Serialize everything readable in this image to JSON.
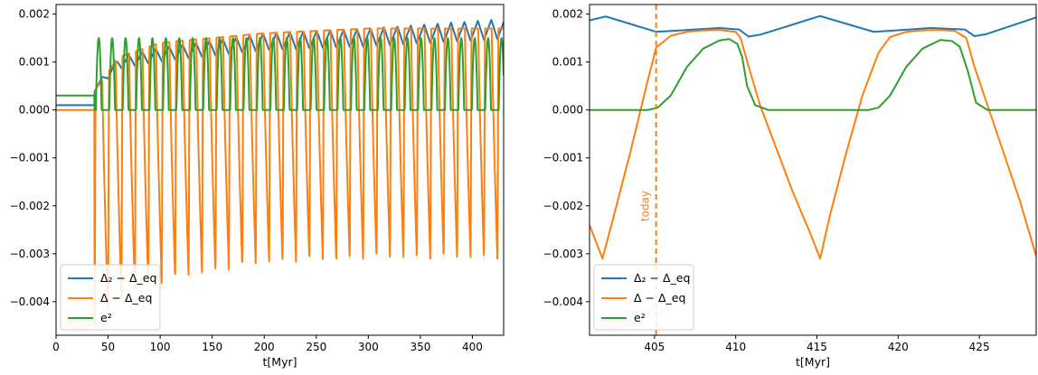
{
  "chart_data": [
    {
      "type": "line",
      "xlabel": "t[Myr]",
      "xlim": [
        0,
        430
      ],
      "ylim": [
        -0.0047,
        0.0022
      ],
      "xticks": [
        0,
        50,
        100,
        150,
        200,
        250,
        300,
        350,
        400
      ],
      "yticks": [
        -0.004,
        -0.003,
        -0.002,
        -0.001,
        0.0,
        0.001,
        0.002
      ],
      "xtick_labels": [
        "0",
        "50",
        "100",
        "150",
        "200",
        "250",
        "300",
        "350",
        "400"
      ],
      "ytick_labels": [
        "−0.004",
        "−0.003",
        "−0.002",
        "−0.001",
        "0.000",
        "0.001",
        "0.002"
      ],
      "legend_position": "lower-left",
      "legend": [
        "Δ₂ − Δ_eq",
        "Δ − Δ_eq",
        "e²"
      ],
      "generator": {
        "t_start": 37,
        "period": 12.9,
        "pre_values": {
          "blue": 0.0001,
          "orange": 0.0,
          "green": 0.0003
        },
        "blue_envelope": [
          [
            37,
            0.0005
          ],
          [
            60,
            0.0011
          ],
          [
            100,
            0.0013
          ],
          [
            200,
            0.0016
          ],
          [
            300,
            0.0017
          ],
          [
            430,
            0.0019
          ]
        ],
        "orange_max_envelope": [
          [
            37,
            0.0004
          ],
          [
            60,
            0.0011
          ],
          [
            100,
            0.0014
          ],
          [
            200,
            0.0016
          ],
          [
            300,
            0.0017
          ],
          [
            430,
            0.0017
          ]
        ],
        "orange_min_envelope": [
          [
            37,
            -0.0045
          ],
          [
            70,
            -0.0038
          ],
          [
            120,
            -0.0035
          ],
          [
            200,
            -0.0032
          ],
          [
            300,
            -0.0031
          ],
          [
            430,
            -0.0031
          ]
        ],
        "green_peak": 0.0015
      },
      "series": [
        {
          "name": "Δ₂ − Δ_eq",
          "color": "#1f77b4"
        },
        {
          "name": "Δ − Δ_eq",
          "color": "#ff7f0e"
        },
        {
          "name": "e²",
          "color": "#2ca02c"
        }
      ]
    },
    {
      "type": "line",
      "xlabel": "t[Myr]",
      "xlim": [
        401,
        428.5
      ],
      "ylim": [
        -0.0047,
        0.0022
      ],
      "xticks": [
        405,
        410,
        415,
        420,
        425
      ],
      "yticks": [
        -0.004,
        -0.003,
        -0.002,
        -0.001,
        0.0,
        0.001,
        0.002
      ],
      "xtick_labels": [
        "405",
        "410",
        "415",
        "420",
        "425"
      ],
      "ytick_labels": [
        "−0.004",
        "−0.003",
        "−0.002",
        "−0.001",
        "0.000",
        "0.001",
        "0.002"
      ],
      "legend_position": "lower-left",
      "legend": [
        "Δ₂ − Δ_eq",
        "Δ − Δ_eq",
        "e²"
      ],
      "annotation": {
        "text": "today",
        "x": 405.1,
        "color": "#ff7f0e",
        "style": "dashed vertical line"
      },
      "series": [
        {
          "name": "Δ₂ − Δ_eq",
          "color": "#1f77b4",
          "x": [
            401,
            402,
            405.1,
            409,
            410.2,
            410.8,
            411.5,
            415.2,
            418.5,
            422,
            424.1,
            424.7,
            425.4,
            428.5
          ],
          "y": [
            0.00187,
            0.00195,
            0.00163,
            0.00171,
            0.00168,
            0.00153,
            0.00157,
            0.00196,
            0.00163,
            0.00171,
            0.00168,
            0.00154,
            0.00158,
            0.00193
          ]
        },
        {
          "name": "Δ − Δ_eq",
          "color": "#ff7f0e",
          "x": [
            401,
            401.8,
            402.5,
            403.5,
            404.5,
            405.1,
            406,
            407,
            408,
            409,
            410,
            410.3,
            410.8,
            411.5,
            412.5,
            413.5,
            414.5,
            415.2,
            415.8,
            416.8,
            417.8,
            418.8,
            419.5,
            420.5,
            421.5,
            422.5,
            423.5,
            424.2,
            424.7,
            425.5,
            426.5,
            427.5,
            428.5
          ],
          "y": [
            -0.0024,
            -0.0031,
            -0.0022,
            -0.0009,
            0.0005,
            0.0013,
            0.00155,
            0.00163,
            0.00166,
            0.00167,
            0.00163,
            0.0015,
            0.0009,
            0.0001,
            -0.0008,
            -0.0017,
            -0.0025,
            -0.0031,
            -0.0022,
            -0.0009,
            0.0003,
            0.0012,
            0.00152,
            0.00163,
            0.00166,
            0.00167,
            0.00165,
            0.0015,
            0.0009,
            0.0001,
            -0.0009,
            -0.0019,
            -0.00305
          ]
        },
        {
          "name": "e²",
          "color": "#2ca02c",
          "x": [
            401,
            404.6,
            405.2,
            406,
            407,
            408,
            409,
            409.6,
            410.1,
            410.4,
            410.7,
            411.2,
            412,
            418.2,
            418.8,
            419.5,
            420.5,
            421.5,
            422.6,
            423.3,
            423.8,
            424.3,
            424.8,
            425.5,
            428.5
          ],
          "y": [
            0.0,
            0.0,
            5e-05,
            0.0003,
            0.0009,
            0.00128,
            0.00145,
            0.00148,
            0.00138,
            0.0011,
            0.0005,
            0.0001,
            0.0,
            0.0,
            5e-05,
            0.0003,
            0.0009,
            0.00128,
            0.00146,
            0.00144,
            0.00132,
            0.0008,
            0.00015,
            0.0,
            0.0
          ]
        }
      ]
    }
  ]
}
